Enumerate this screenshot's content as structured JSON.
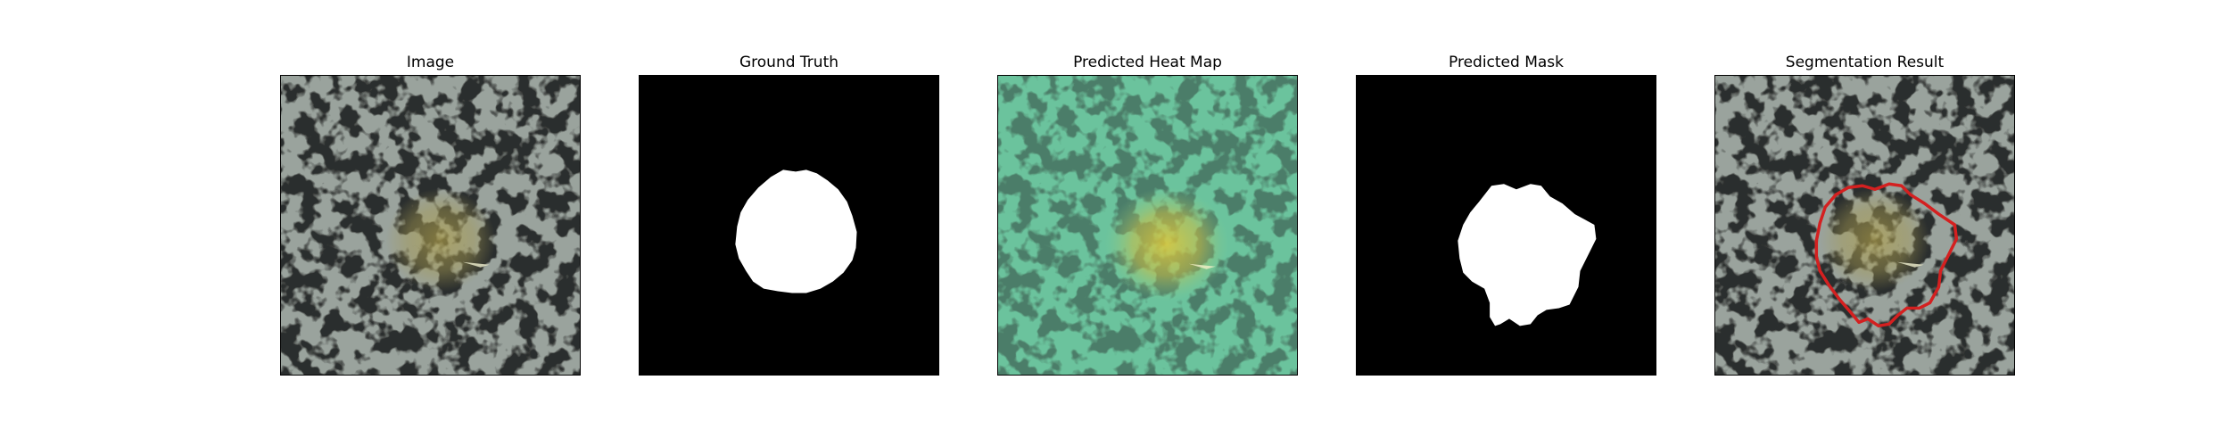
{
  "panels": [
    {
      "title": "Image"
    },
    {
      "title": "Ground Truth"
    },
    {
      "title": "Predicted Heat Map"
    },
    {
      "title": "Predicted Mask"
    },
    {
      "title": "Segmentation Result"
    }
  ],
  "colors": {
    "texture_light": "#9aa39d",
    "texture_dark": "#2c2e2d",
    "lesion_tint": "#a69a52",
    "heat_base": "#6fc7a0",
    "heat_hot": "#d7c73a",
    "mask_fg": "#ffffff",
    "mask_bg": "#000000",
    "contour": "#d42020"
  }
}
